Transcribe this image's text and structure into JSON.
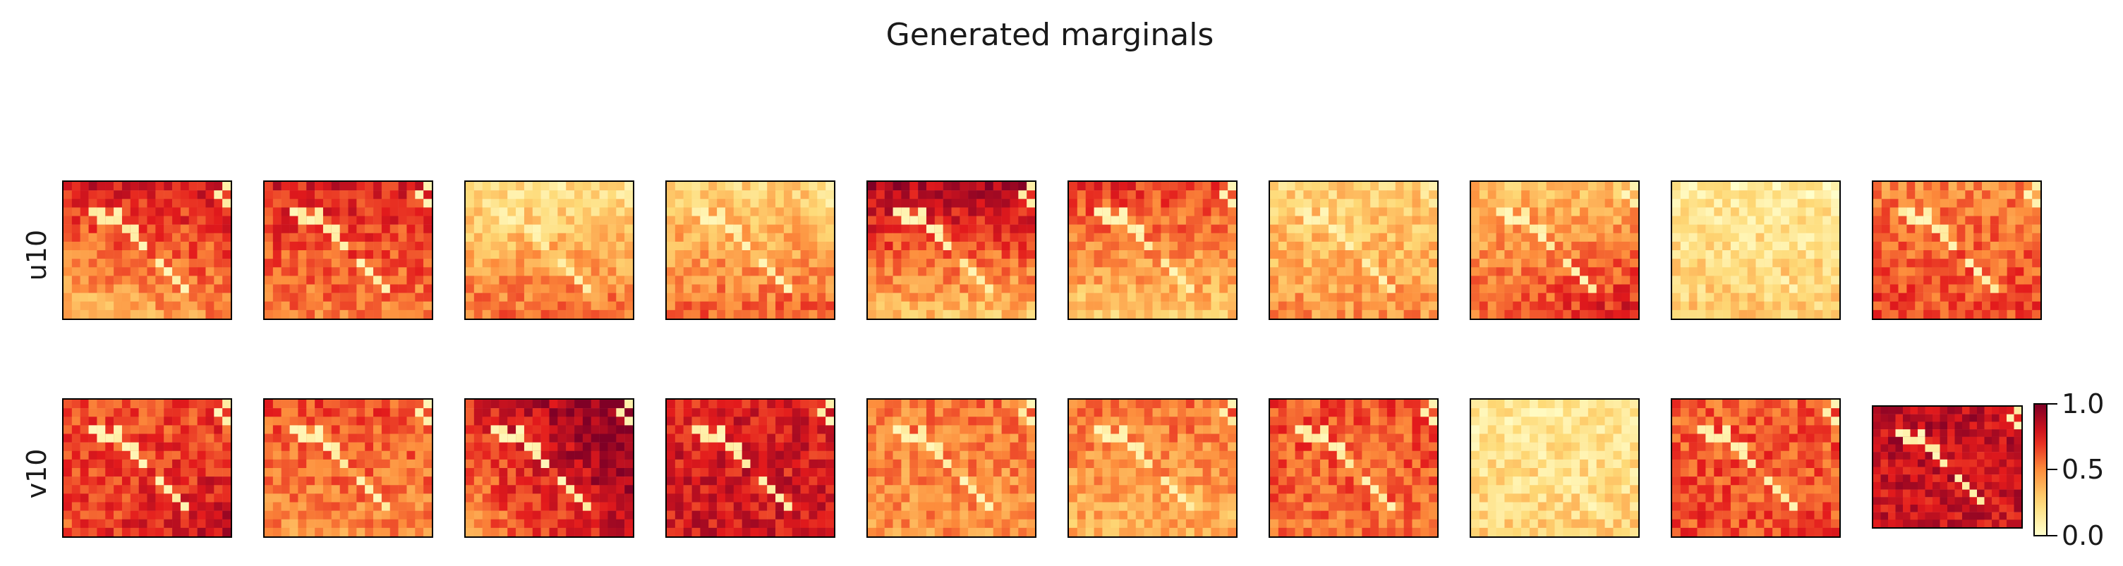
{
  "chart_data": {
    "type": "heatmap",
    "title": "Generated marginals",
    "rows": [
      "u10",
      "v10"
    ],
    "columns_per_row": 10,
    "grid_cells": [
      20,
      16
    ],
    "colormap": "YlOrRd",
    "colorbar": {
      "min": 0.0,
      "max": 1.0,
      "ticks": [
        "1.0",
        "0.5",
        "0.0"
      ]
    },
    "axes_ticks": "off",
    "panels": [
      {
        "row": "u10",
        "base": 0.72,
        "top": 0.78,
        "bottom": 0.3,
        "pattern": "dark-top-light-bottom-right"
      },
      {
        "row": "u10",
        "base": 0.7,
        "top": 0.78,
        "bottom": 0.45,
        "pattern": "dark-top-mixed-bottom"
      },
      {
        "row": "u10",
        "base": 0.25,
        "top": 0.18,
        "bottom": 0.7,
        "pattern": "light-top-dark-bottom"
      },
      {
        "row": "u10",
        "base": 0.3,
        "top": 0.25,
        "bottom": 0.7,
        "pattern": "light-top-dark-bottom"
      },
      {
        "row": "u10",
        "base": 0.8,
        "top": 0.92,
        "bottom": 0.15,
        "pattern": "dark-top-light-bottom-band"
      },
      {
        "row": "u10",
        "base": 0.6,
        "top": 0.7,
        "bottom": 0.2,
        "pattern": "dark-top-light-bottom"
      },
      {
        "row": "u10",
        "base": 0.28,
        "top": 0.25,
        "bottom": 0.55,
        "pattern": "light-uniform-dark-bottom-center"
      },
      {
        "row": "u10",
        "base": 0.4,
        "top": 0.3,
        "bottom": 0.8,
        "pattern": "light-top-dark-bottom-right"
      },
      {
        "row": "u10",
        "base": 0.15,
        "top": 0.12,
        "bottom": 0.35,
        "pattern": "very-light-uniform"
      },
      {
        "row": "u10",
        "base": 0.55,
        "top": 0.5,
        "bottom": 0.7,
        "pattern": "mixed"
      },
      {
        "row": "v10",
        "base": 0.7,
        "top": 0.6,
        "bottom": 0.75,
        "pattern": "dark-with-light-top-right"
      },
      {
        "row": "v10",
        "base": 0.6,
        "top": 0.65,
        "bottom": 0.45,
        "pattern": "mixed"
      },
      {
        "row": "v10",
        "base": 0.75,
        "top": 0.7,
        "bottom": 0.9,
        "pattern": "dark-diagonal"
      },
      {
        "row": "v10",
        "base": 0.78,
        "top": 0.75,
        "bottom": 0.8,
        "pattern": "dark-uniform"
      },
      {
        "row": "v10",
        "base": 0.5,
        "top": 0.55,
        "bottom": 0.45,
        "pattern": "mixed"
      },
      {
        "row": "v10",
        "base": 0.45,
        "top": 0.6,
        "bottom": 0.35,
        "pattern": "mixed-light-bottom"
      },
      {
        "row": "v10",
        "base": 0.6,
        "top": 0.65,
        "bottom": 0.55,
        "pattern": "mixed"
      },
      {
        "row": "v10",
        "base": 0.18,
        "top": 0.12,
        "bottom": 0.3,
        "pattern": "very-light-uniform"
      },
      {
        "row": "v10",
        "base": 0.62,
        "top": 0.6,
        "bottom": 0.65,
        "pattern": "mixed"
      },
      {
        "row": "v10",
        "base": 0.82,
        "top": 0.85,
        "bottom": 0.8,
        "pattern": "dark-uniform"
      }
    ]
  }
}
